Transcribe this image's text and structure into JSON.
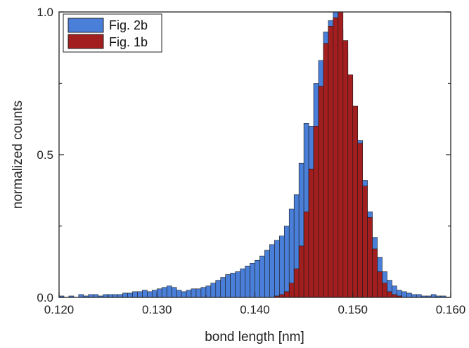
{
  "chart_data": {
    "type": "bar",
    "subtype": "overlapping-histogram",
    "title": "",
    "xlabel": "bond length [nm]",
    "ylabel": "normalized counts",
    "xlim": [
      0.12,
      0.16
    ],
    "ylim": [
      0,
      1.0
    ],
    "x_ticks": [
      "0.120",
      "0.130",
      "0.140",
      "0.150",
      "0.160"
    ],
    "y_ticks": [
      "0.0",
      "0.5",
      "1.0"
    ],
    "bin_start": 0.12,
    "bin_width": 0.0005,
    "legend_position": "top-left",
    "grid": false,
    "series": [
      {
        "name": "Fig. 2b",
        "color": "#4a7fd9",
        "values": [
          0.005,
          0.0,
          0.005,
          0.0,
          0.01,
          0.005,
          0.01,
          0.01,
          0.005,
          0.01,
          0.01,
          0.01,
          0.01,
          0.015,
          0.015,
          0.02,
          0.02,
          0.025,
          0.02,
          0.025,
          0.03,
          0.035,
          0.04,
          0.035,
          0.025,
          0.02,
          0.025,
          0.03,
          0.03,
          0.035,
          0.04,
          0.05,
          0.06,
          0.07,
          0.08,
          0.085,
          0.09,
          0.1,
          0.11,
          0.12,
          0.13,
          0.145,
          0.165,
          0.185,
          0.2,
          0.215,
          0.25,
          0.31,
          0.36,
          0.47,
          0.61,
          0.6,
          0.75,
          0.83,
          0.93,
          0.97,
          1.0,
          0.94,
          0.86,
          0.76,
          0.65,
          0.55,
          0.41,
          0.3,
          0.21,
          0.14,
          0.09,
          0.06,
          0.04,
          0.025,
          0.02,
          0.015,
          0.01,
          0.01,
          0.005,
          0.005,
          0.01,
          0.005,
          0.005,
          0.0,
          0.0
        ]
      },
      {
        "name": "Fig. 1b",
        "color": "#a31e1e",
        "values": [
          0,
          0,
          0,
          0,
          0,
          0,
          0,
          0,
          0,
          0,
          0,
          0,
          0,
          0,
          0,
          0,
          0,
          0,
          0,
          0,
          0,
          0,
          0,
          0,
          0,
          0,
          0,
          0,
          0,
          0,
          0,
          0,
          0,
          0,
          0,
          0,
          0,
          0,
          0,
          0,
          0,
          0,
          0,
          0,
          0.005,
          0.01,
          0.02,
          0.05,
          0.1,
          0.18,
          0.3,
          0.45,
          0.6,
          0.74,
          0.89,
          0.95,
          0.98,
          1.0,
          0.9,
          0.78,
          0.67,
          0.54,
          0.39,
          0.28,
          0.17,
          0.09,
          0.05,
          0.02,
          0.01,
          0.005,
          0,
          0,
          0,
          0,
          0,
          0,
          0,
          0,
          0,
          0,
          0
        ]
      }
    ]
  }
}
